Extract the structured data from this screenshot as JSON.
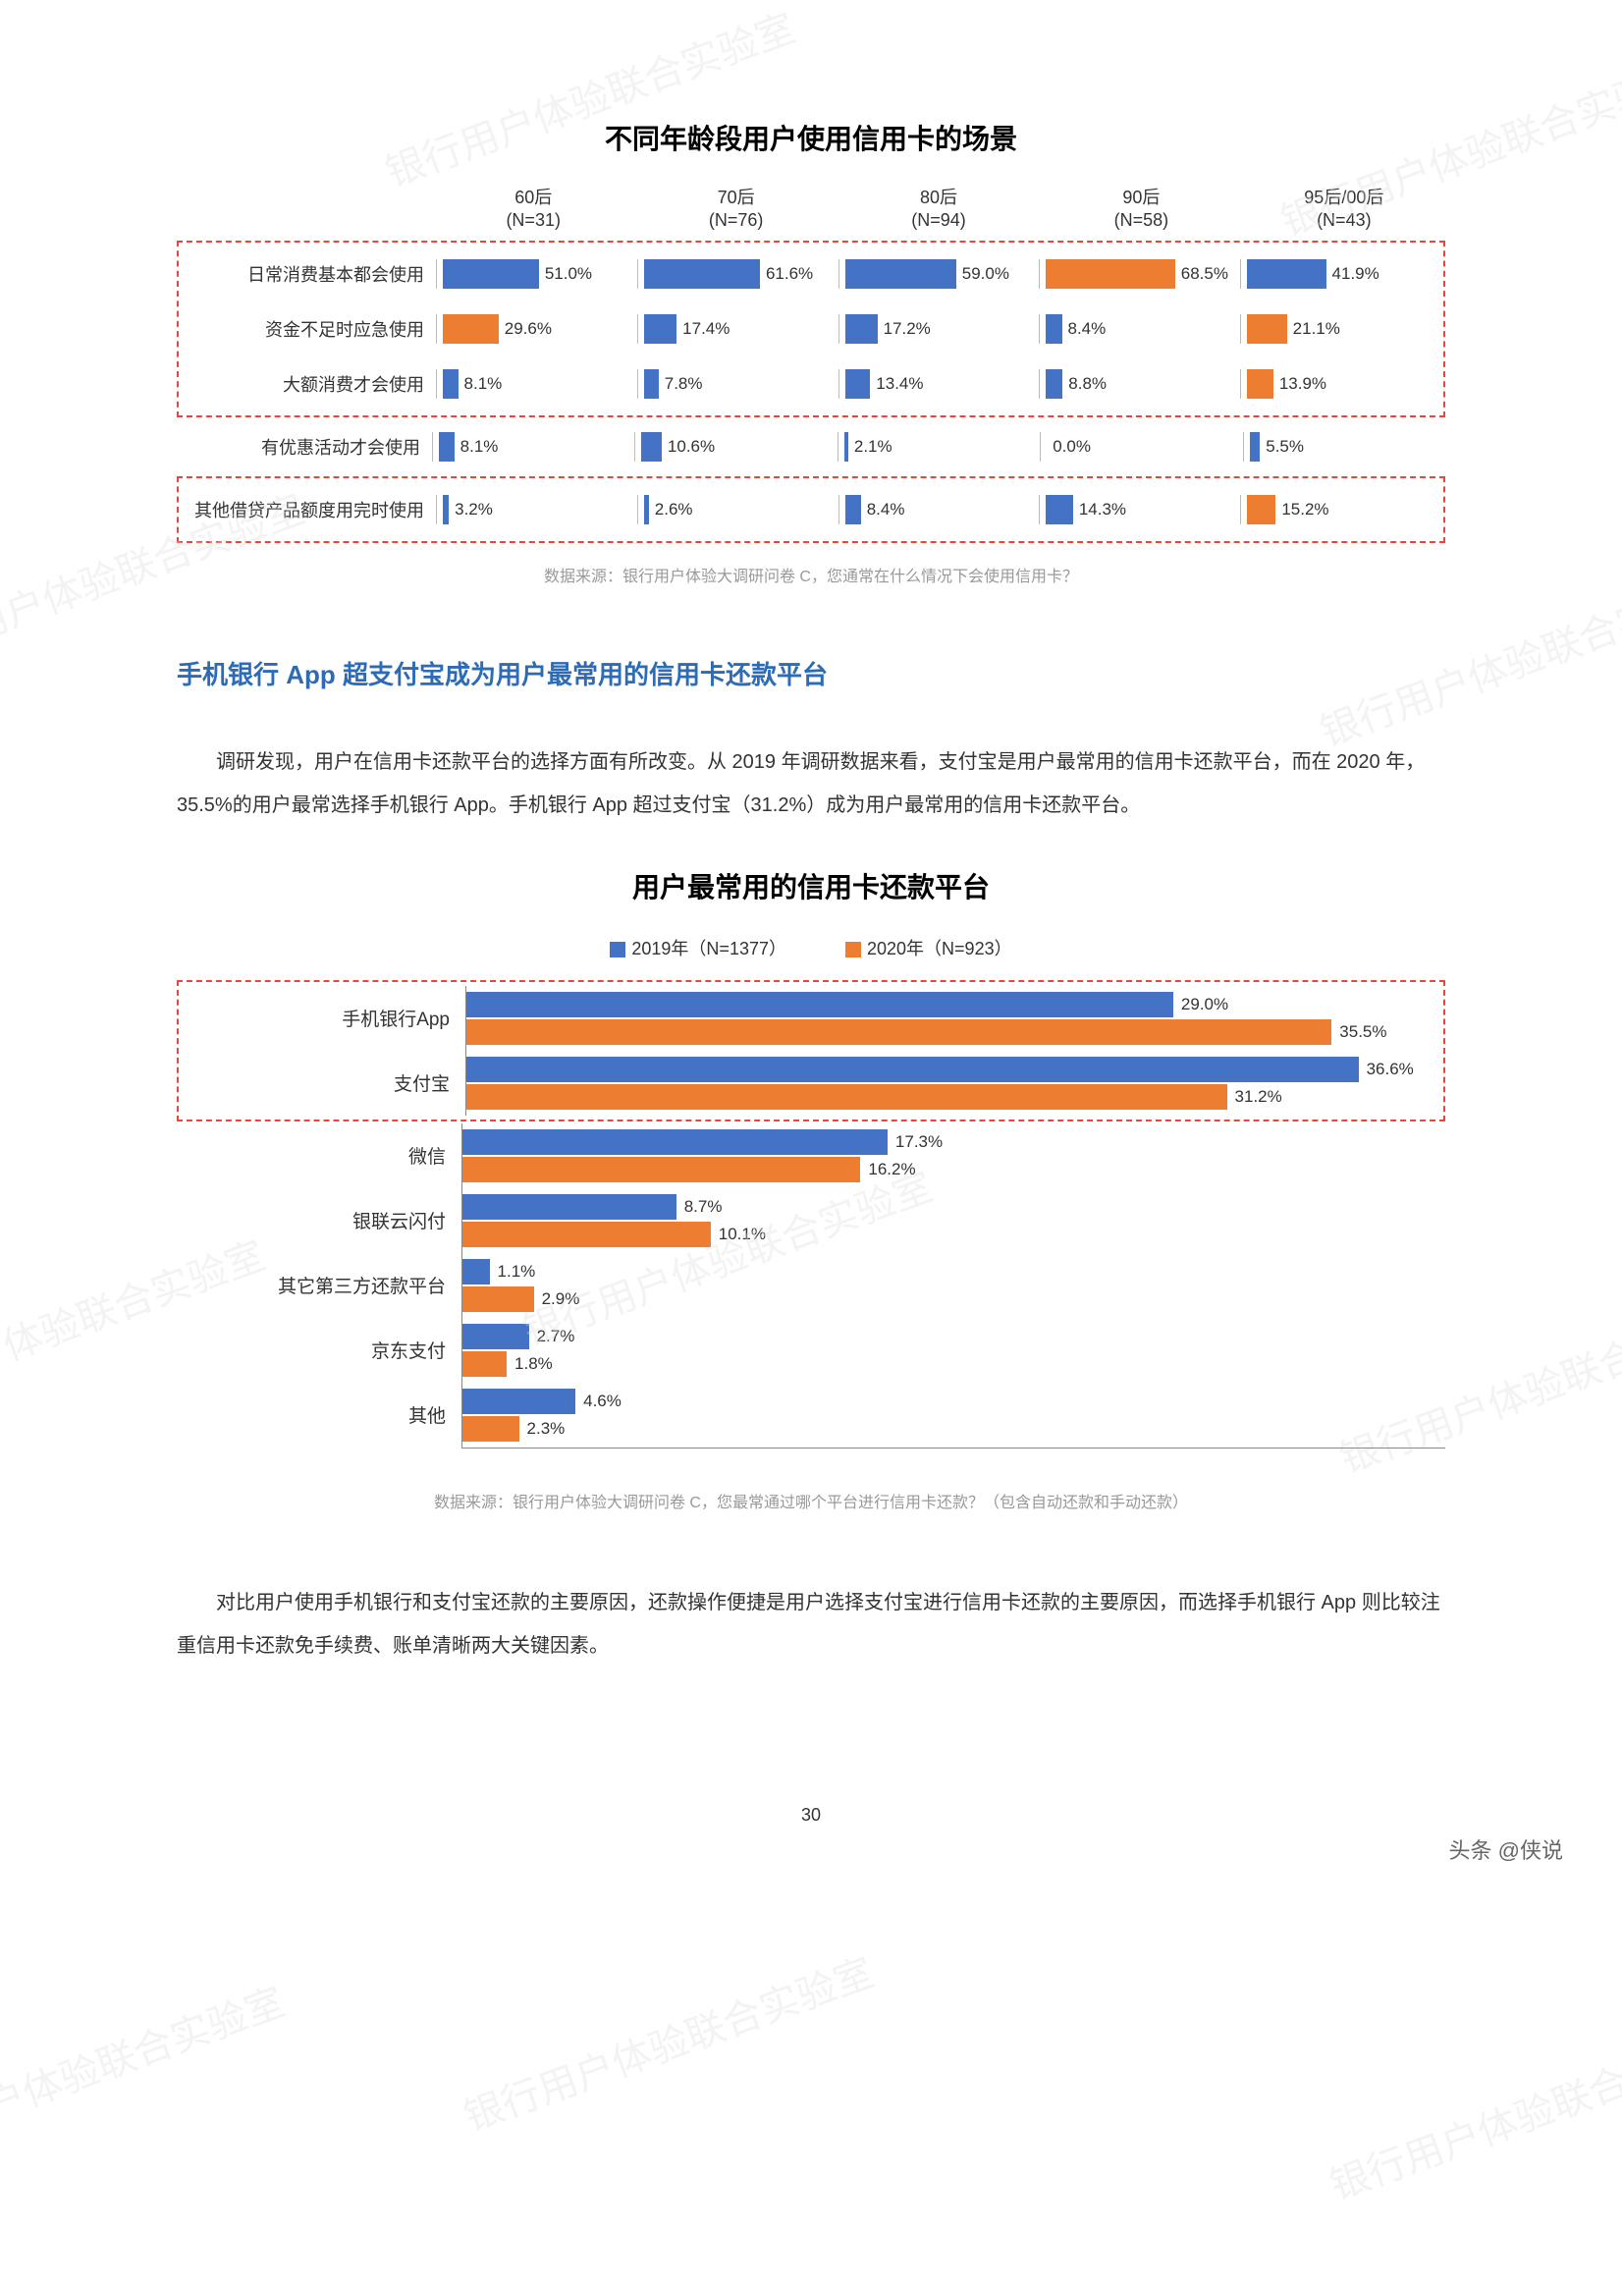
{
  "watermark_text": "银行用户体验联合实验室",
  "chart1": {
    "type": "grouped-horizontal-bar-table",
    "title": "不同年龄段用户使用信用卡的场景",
    "source": "数据来源：银行用户体验大调研问卷 C，您通常在什么情况下会使用信用卡？",
    "columns": [
      {
        "label": "60后",
        "n": "(N=31)"
      },
      {
        "label": "70后",
        "n": "(N=76)"
      },
      {
        "label": "80后",
        "n": "(N=94)"
      },
      {
        "label": "90后",
        "n": "(N=58)"
      },
      {
        "label": "95后/00后",
        "n": "(N=43)"
      }
    ],
    "colors": {
      "blue": "#4472c4",
      "red": "#ed7d31"
    },
    "xmax_per_cell": 100,
    "rows": [
      {
        "label": "日常消费基本都会使用",
        "highlight_group": 1,
        "cells": [
          {
            "value": 51.0,
            "color": "blue"
          },
          {
            "value": 61.6,
            "color": "blue"
          },
          {
            "value": 59.0,
            "color": "blue"
          },
          {
            "value": 68.5,
            "color": "red"
          },
          {
            "value": 41.9,
            "color": "blue"
          }
        ]
      },
      {
        "label": "资金不足时应急使用",
        "highlight_group": 1,
        "cells": [
          {
            "value": 29.6,
            "color": "red"
          },
          {
            "value": 17.4,
            "color": "blue"
          },
          {
            "value": 17.2,
            "color": "blue"
          },
          {
            "value": 8.4,
            "color": "blue"
          },
          {
            "value": 21.1,
            "color": "red"
          }
        ]
      },
      {
        "label": "大额消费才会使用",
        "highlight_group": 1,
        "cells": [
          {
            "value": 8.1,
            "color": "blue"
          },
          {
            "value": 7.8,
            "color": "blue"
          },
          {
            "value": 13.4,
            "color": "blue"
          },
          {
            "value": 8.8,
            "color": "blue"
          },
          {
            "value": 13.9,
            "color": "red"
          }
        ]
      },
      {
        "label": "有优惠活动才会使用",
        "highlight_group": 0,
        "cells": [
          {
            "value": 8.1,
            "color": "blue"
          },
          {
            "value": 10.6,
            "color": "blue"
          },
          {
            "value": 2.1,
            "color": "blue"
          },
          {
            "value": 0.0,
            "color": "blue"
          },
          {
            "value": 5.5,
            "color": "blue"
          }
        ]
      },
      {
        "label": "其他借贷产品额度用完时使用",
        "highlight_group": 2,
        "cells": [
          {
            "value": 3.2,
            "color": "blue"
          },
          {
            "value": 2.6,
            "color": "blue"
          },
          {
            "value": 8.4,
            "color": "blue"
          },
          {
            "value": 14.3,
            "color": "blue"
          },
          {
            "value": 15.2,
            "color": "red"
          }
        ]
      }
    ]
  },
  "section_heading": "手机银行 App 超支付宝成为用户最常用的信用卡还款平台",
  "paragraph1": "调研发现，用户在信用卡还款平台的选择方面有所改变。从 2019 年调研数据来看，支付宝是用户最常用的信用卡还款平台，而在 2020 年，35.5%的用户最常选择手机银行 App。手机银行 App 超过支付宝（31.2%）成为用户最常用的信用卡还款平台。",
  "chart2": {
    "type": "grouped-horizontal-bar",
    "title": "用户最常用的信用卡还款平台",
    "source": "数据来源：银行用户体验大调研问卷 C，您最常通过哪个平台进行信用卡还款？（包含自动还款和手动还款）",
    "legend": [
      {
        "label": "2019年（N=1377）",
        "color": "#4472c4"
      },
      {
        "label": "2020年（N=923）",
        "color": "#ed7d31"
      }
    ],
    "xmax": 40,
    "rows": [
      {
        "label": "手机银行App",
        "highlighted": true,
        "bars": [
          {
            "value": 29.0,
            "color": "#4472c4"
          },
          {
            "value": 35.5,
            "color": "#ed7d31"
          }
        ]
      },
      {
        "label": "支付宝",
        "highlighted": true,
        "bars": [
          {
            "value": 36.6,
            "color": "#4472c4"
          },
          {
            "value": 31.2,
            "color": "#ed7d31"
          }
        ]
      },
      {
        "label": "微信",
        "highlighted": false,
        "bars": [
          {
            "value": 17.3,
            "color": "#4472c4"
          },
          {
            "value": 16.2,
            "color": "#ed7d31"
          }
        ]
      },
      {
        "label": "银联云闪付",
        "highlighted": false,
        "bars": [
          {
            "value": 8.7,
            "color": "#4472c4"
          },
          {
            "value": 10.1,
            "color": "#ed7d31"
          }
        ]
      },
      {
        "label": "其它第三方还款平台",
        "highlighted": false,
        "bars": [
          {
            "value": 1.1,
            "color": "#4472c4"
          },
          {
            "value": 2.9,
            "color": "#ed7d31"
          }
        ]
      },
      {
        "label": "京东支付",
        "highlighted": false,
        "bars": [
          {
            "value": 2.7,
            "color": "#4472c4"
          },
          {
            "value": 1.8,
            "color": "#ed7d31"
          }
        ]
      },
      {
        "label": "其他",
        "highlighted": false,
        "bars": [
          {
            "value": 4.6,
            "color": "#4472c4"
          },
          {
            "value": 2.3,
            "color": "#ed7d31"
          }
        ]
      }
    ]
  },
  "paragraph2": "对比用户使用手机银行和支付宝还款的主要原因，还款操作便捷是用户选择支付宝进行信用卡还款的主要原因，而选择手机银行 App 则比较注重信用卡还款免手续费、账单清晰两大关键因素。",
  "page_number": "30",
  "footer_credit": "头条 @侠说"
}
